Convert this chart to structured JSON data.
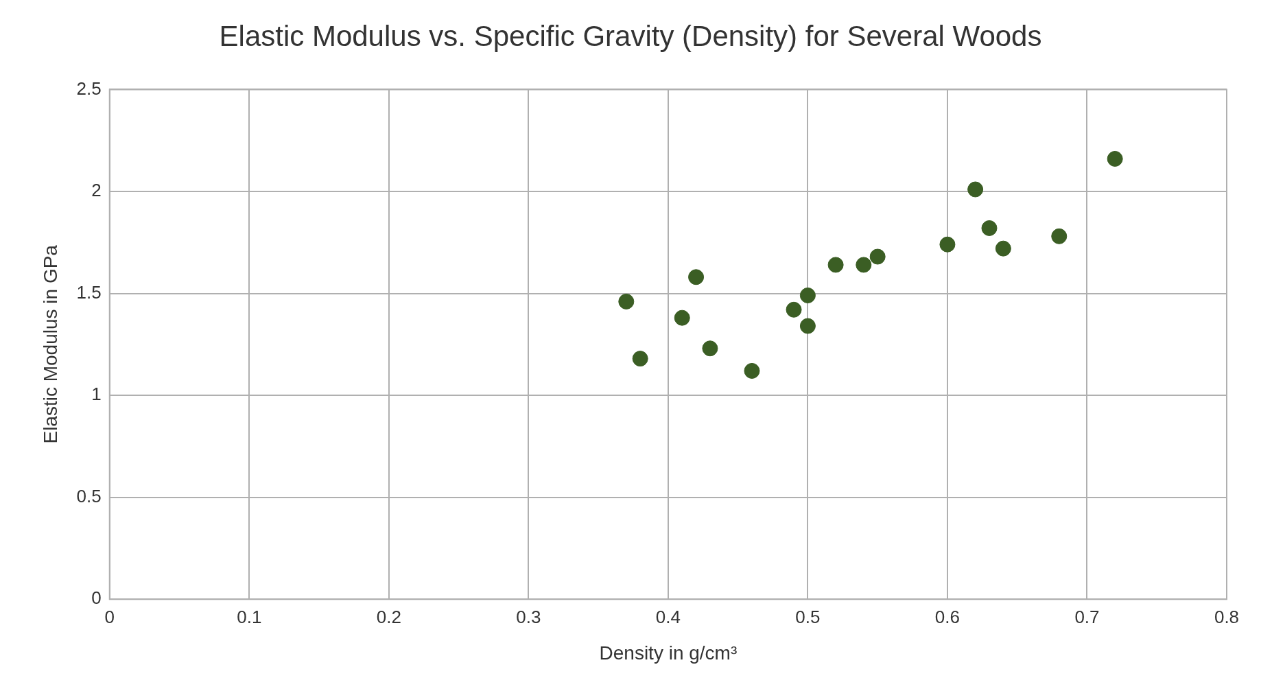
{
  "chart_data": {
    "type": "scatter",
    "title": "Elastic Modulus vs. Specific Gravity (Density) for Several Woods",
    "xlabel": "Density in g/cm³",
    "ylabel": "Elastic Modulus in GPa",
    "x": [
      0.37,
      0.38,
      0.41,
      0.42,
      0.43,
      0.46,
      0.49,
      0.5,
      0.5,
      0.52,
      0.54,
      0.55,
      0.6,
      0.62,
      0.63,
      0.64,
      0.68,
      0.72
    ],
    "series": [
      {
        "color": "#3b5e24",
        "values": [
          1.46,
          1.18,
          1.38,
          1.58,
          1.23,
          1.12,
          1.42,
          1.49,
          1.34,
          1.64,
          1.64,
          1.68,
          1.74,
          2.01,
          1.82,
          1.72,
          1.78,
          2.16
        ]
      }
    ],
    "xlim": [
      0,
      0.8
    ],
    "xticks": [
      0,
      0.1,
      0.2,
      0.3,
      0.4,
      0.5,
      0.6,
      0.7,
      0.8
    ],
    "ylim": [
      0,
      2.5
    ],
    "yticks": [
      0,
      0.5,
      1,
      1.5,
      2,
      2.5
    ],
    "grid": true,
    "legend": false,
    "marker": "circle"
  }
}
